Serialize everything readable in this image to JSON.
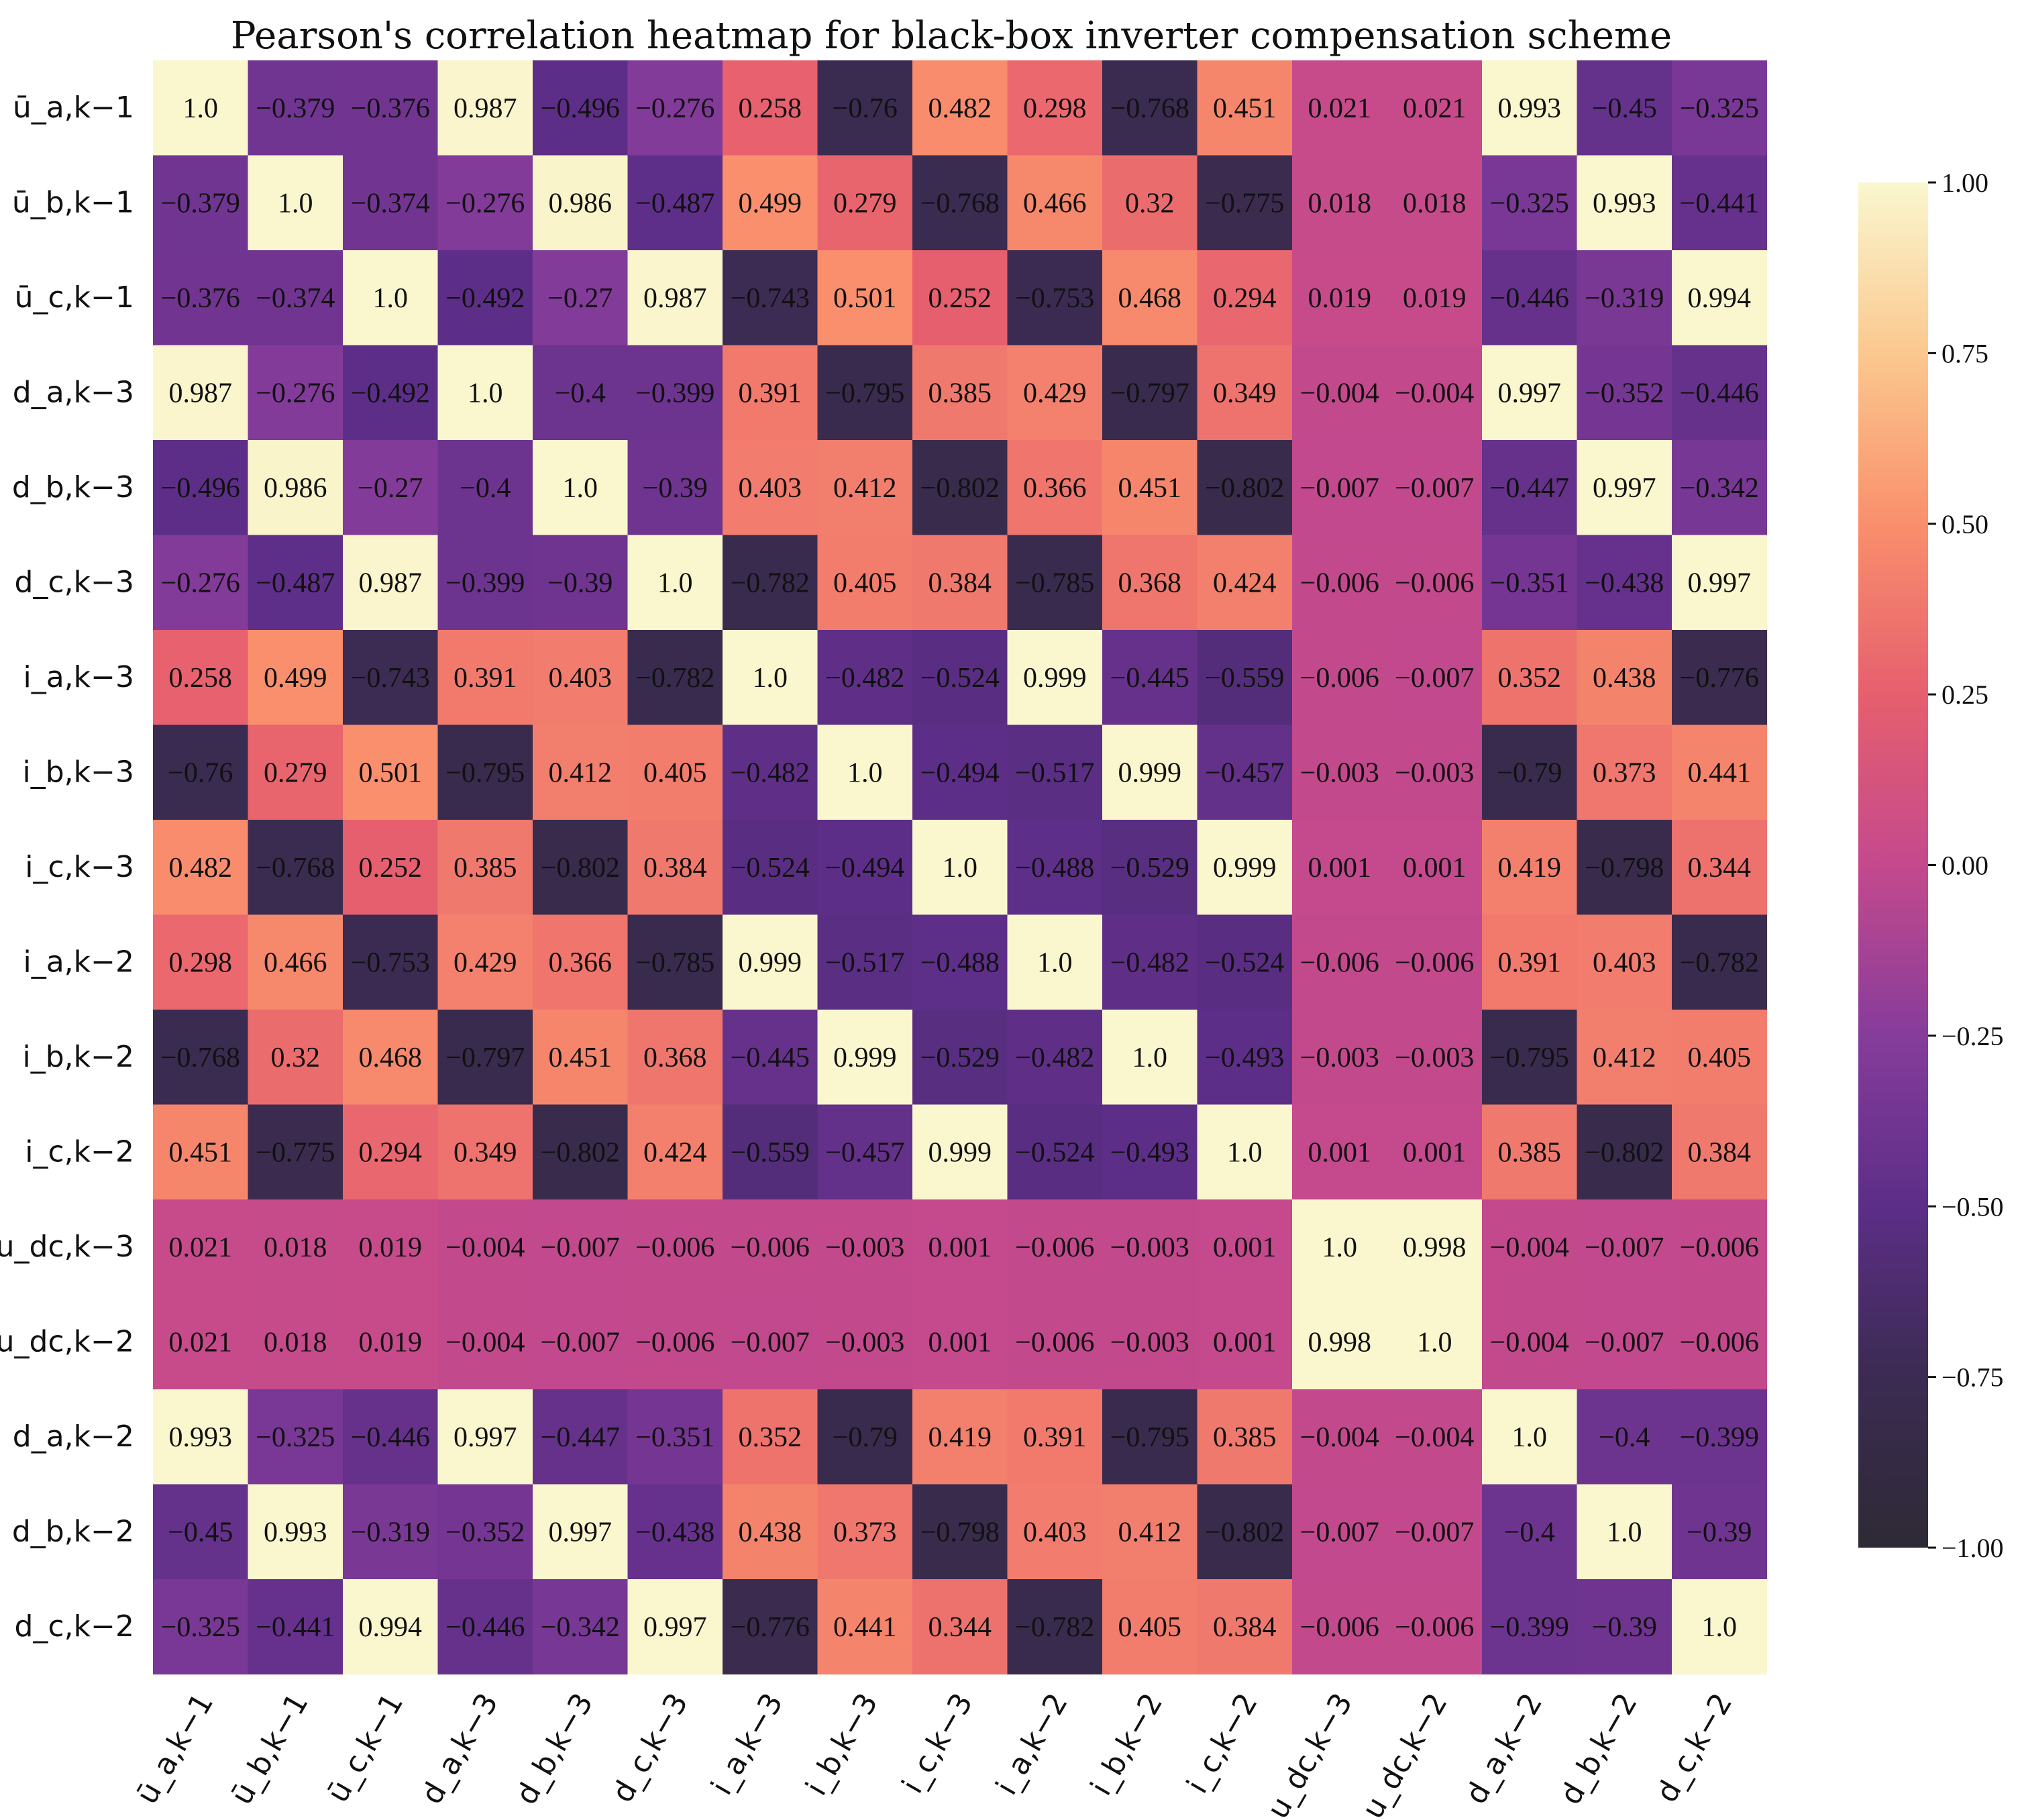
{
  "chart_data": {
    "type": "heatmap",
    "title": "Pearson's correlation heatmap for black-box inverter compensation scheme",
    "labels": [
      "ū_a,k−1",
      "ū_b,k−1",
      "ū_c,k−1",
      "d_a,k−3",
      "d_b,k−3",
      "d_c,k−3",
      "i_a,k−3",
      "i_b,k−3",
      "i_c,k−3",
      "i_a,k−2",
      "i_b,k−2",
      "i_c,k−2",
      "u_dc,k−3",
      "u_dc,k−2",
      "d_a,k−2",
      "d_b,k−2",
      "d_c,k−2"
    ],
    "matrix": [
      [
        "1.0",
        "−0.379",
        "−0.376",
        "0.987",
        "−0.496",
        "−0.276",
        "0.258",
        "−0.76",
        "0.482",
        "0.298",
        "−0.768",
        "0.451",
        "0.021",
        "0.021",
        "0.993",
        "−0.45",
        "−0.325"
      ],
      [
        "−0.379",
        "1.0",
        "−0.374",
        "−0.276",
        "0.986",
        "−0.487",
        "0.499",
        "0.279",
        "−0.768",
        "0.466",
        "0.32",
        "−0.775",
        "0.018",
        "0.018",
        "−0.325",
        "0.993",
        "−0.441"
      ],
      [
        "−0.376",
        "−0.374",
        "1.0",
        "−0.492",
        "−0.27",
        "0.987",
        "−0.743",
        "0.501",
        "0.252",
        "−0.753",
        "0.468",
        "0.294",
        "0.019",
        "0.019",
        "−0.446",
        "−0.319",
        "0.994"
      ],
      [
        "0.987",
        "−0.276",
        "−0.492",
        "1.0",
        "−0.4",
        "−0.399",
        "0.391",
        "−0.795",
        "0.385",
        "0.429",
        "−0.797",
        "0.349",
        "−0.004",
        "−0.004",
        "0.997",
        "−0.352",
        "−0.446"
      ],
      [
        "−0.496",
        "0.986",
        "−0.27",
        "−0.4",
        "1.0",
        "−0.39",
        "0.403",
        "0.412",
        "−0.802",
        "0.366",
        "0.451",
        "−0.802",
        "−0.007",
        "−0.007",
        "−0.447",
        "0.997",
        "−0.342"
      ],
      [
        "−0.276",
        "−0.487",
        "0.987",
        "−0.399",
        "−0.39",
        "1.0",
        "−0.782",
        "0.405",
        "0.384",
        "−0.785",
        "0.368",
        "0.424",
        "−0.006",
        "−0.006",
        "−0.351",
        "−0.438",
        "0.997"
      ],
      [
        "0.258",
        "0.499",
        "−0.743",
        "0.391",
        "0.403",
        "−0.782",
        "1.0",
        "−0.482",
        "−0.524",
        "0.999",
        "−0.445",
        "−0.559",
        "−0.006",
        "−0.007",
        "0.352",
        "0.438",
        "−0.776"
      ],
      [
        "−0.76",
        "0.279",
        "0.501",
        "−0.795",
        "0.412",
        "0.405",
        "−0.482",
        "1.0",
        "−0.494",
        "−0.517",
        "0.999",
        "−0.457",
        "−0.003",
        "−0.003",
        "−0.79",
        "0.373",
        "0.441"
      ],
      [
        "0.482",
        "−0.768",
        "0.252",
        "0.385",
        "−0.802",
        "0.384",
        "−0.524",
        "−0.494",
        "1.0",
        "−0.488",
        "−0.529",
        "0.999",
        "0.001",
        "0.001",
        "0.419",
        "−0.798",
        "0.344"
      ],
      [
        "0.298",
        "0.466",
        "−0.753",
        "0.429",
        "0.366",
        "−0.785",
        "0.999",
        "−0.517",
        "−0.488",
        "1.0",
        "−0.482",
        "−0.524",
        "−0.006",
        "−0.006",
        "0.391",
        "0.403",
        "−0.782"
      ],
      [
        "−0.768",
        "0.32",
        "0.468",
        "−0.797",
        "0.451",
        "0.368",
        "−0.445",
        "0.999",
        "−0.529",
        "−0.482",
        "1.0",
        "−0.493",
        "−0.003",
        "−0.003",
        "−0.795",
        "0.412",
        "0.405"
      ],
      [
        "0.451",
        "−0.775",
        "0.294",
        "0.349",
        "−0.802",
        "0.424",
        "−0.559",
        "−0.457",
        "0.999",
        "−0.524",
        "−0.493",
        "1.0",
        "0.001",
        "0.001",
        "0.385",
        "−0.802",
        "0.384"
      ],
      [
        "0.021",
        "0.018",
        "0.019",
        "−0.004",
        "−0.007",
        "−0.006",
        "−0.006",
        "−0.003",
        "0.001",
        "−0.006",
        "−0.003",
        "0.001",
        "1.0",
        "0.998",
        "−0.004",
        "−0.007",
        "−0.006"
      ],
      [
        "0.021",
        "0.018",
        "0.019",
        "−0.004",
        "−0.007",
        "−0.006",
        "−0.007",
        "−0.003",
        "0.001",
        "−0.006",
        "−0.003",
        "0.001",
        "0.998",
        "1.0",
        "−0.004",
        "−0.007",
        "−0.006"
      ],
      [
        "0.993",
        "−0.325",
        "−0.446",
        "0.997",
        "−0.447",
        "−0.351",
        "0.352",
        "−0.79",
        "0.419",
        "0.391",
        "−0.795",
        "0.385",
        "−0.004",
        "−0.004",
        "1.0",
        "−0.4",
        "−0.399"
      ],
      [
        "−0.45",
        "0.993",
        "−0.319",
        "−0.352",
        "0.997",
        "−0.438",
        "0.438",
        "0.373",
        "−0.798",
        "0.403",
        "0.412",
        "−0.802",
        "−0.007",
        "−0.007",
        "−0.4",
        "1.0",
        "−0.39"
      ],
      [
        "−0.325",
        "−0.441",
        "0.994",
        "−0.446",
        "−0.342",
        "0.997",
        "−0.776",
        "0.441",
        "0.344",
        "−0.782",
        "0.405",
        "0.384",
        "−0.006",
        "−0.006",
        "−0.399",
        "−0.39",
        "1.0"
      ]
    ],
    "colorbar": {
      "range": [
        -1.0,
        1.0
      ],
      "ticks": [
        "1.00",
        "0.75",
        "0.50",
        "0.25",
        "0.00",
        "−0.25",
        "−0.50",
        "−0.75",
        "−1.00"
      ],
      "tick_values": [
        1.0,
        0.75,
        0.5,
        0.25,
        0.0,
        -0.25,
        -0.5,
        -0.75,
        -1.0
      ],
      "colormap": "magma-like",
      "stops": [
        {
          "v": -1.0,
          "color": "#2e2a35"
        },
        {
          "v": -0.75,
          "color": "#3b2b52"
        },
        {
          "v": -0.5,
          "color": "#5c2e87"
        },
        {
          "v": -0.25,
          "color": "#863c9b"
        },
        {
          "v": 0.0,
          "color": "#c4498d"
        },
        {
          "v": 0.25,
          "color": "#e65f6e"
        },
        {
          "v": 0.5,
          "color": "#f98f6c"
        },
        {
          "v": 0.75,
          "color": "#fbc88f"
        },
        {
          "v": 1.0,
          "color": "#faf7cf"
        }
      ]
    }
  }
}
